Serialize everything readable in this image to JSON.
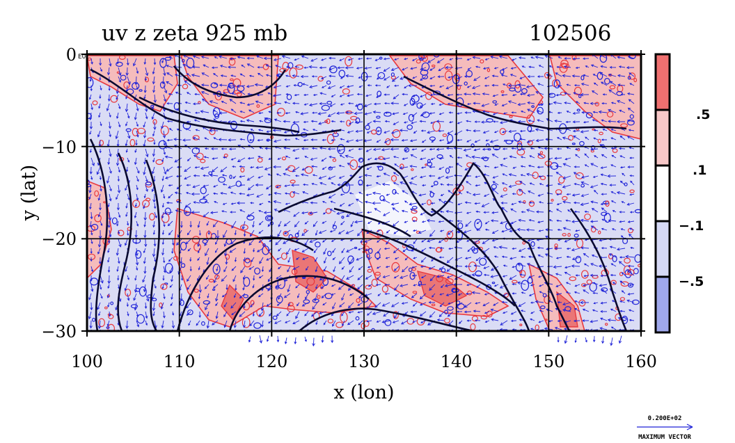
{
  "title_left": "uv z zeta 925 mb",
  "title_right": "102506",
  "corner_mark": "E0",
  "xaxis": {
    "label": "x (lon)",
    "ticks": [
      "100",
      "110",
      "120",
      "130",
      "140",
      "150",
      "160"
    ],
    "values": [
      100,
      110,
      120,
      130,
      140,
      150,
      160
    ],
    "range": [
      100,
      160
    ]
  },
  "yaxis": {
    "label": "y (lat)",
    "ticks": [
      "0",
      "−10",
      "−20",
      "−30"
    ],
    "values": [
      0,
      -10,
      -20,
      -30
    ],
    "range": [
      -30,
      0
    ]
  },
  "colorbar": {
    "labels": [
      ".5",
      ".1",
      "−.1",
      "−.5"
    ],
    "levels": [
      0.5,
      0.1,
      -0.1,
      -0.5
    ],
    "colors": [
      "#ef7070",
      "#f8c8c8",
      "#ffffff",
      "#d6d9f5",
      "#9fa8ec"
    ]
  },
  "vector_legend": {
    "value": "0.200E+02",
    "label": "MAXIMUM VECTOR"
  },
  "colors": {
    "positive": "#e8383d",
    "negative": "#1e22d8",
    "contour": "#000000",
    "pos_fill": "#f7bcbc",
    "neg_fill": "#d8dcf5"
  }
}
